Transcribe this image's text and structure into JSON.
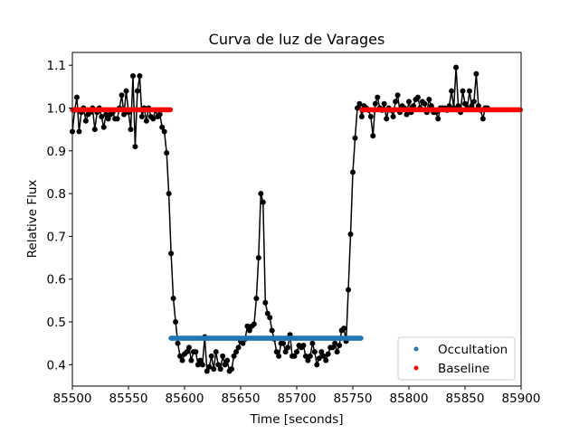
{
  "chart_data": {
    "type": "scatter",
    "title": "Curva de luz de Varages",
    "xlabel": "Time [seconds]",
    "ylabel": "Relative Flux",
    "xlim": [
      85500,
      85900
    ],
    "ylim": [
      0.35,
      1.13
    ],
    "xticks": [
      85500,
      85550,
      85600,
      85650,
      85700,
      85750,
      85800,
      85850,
      85900
    ],
    "yticks": [
      0.4,
      0.5,
      0.6,
      0.7,
      0.8,
      0.9,
      1.0,
      1.1
    ],
    "grid": false,
    "legend_position": "lower-right",
    "series": [
      {
        "name": "Occultation",
        "color": "#1f77b4",
        "marker": "point",
        "x_range": [
          85588,
          85758
        ],
        "y": 0.462
      },
      {
        "name": "Baseline",
        "color": "#ff0000",
        "marker": "point",
        "segments": [
          {
            "x_range": [
              85500,
              85588
            ],
            "y": 0.996
          },
          {
            "x_range": [
              85758,
              85900
            ],
            "y": 0.996
          }
        ]
      }
    ],
    "light_curve": {
      "color": "#000000",
      "points": [
        [
          85500,
          0.945
        ],
        [
          85502,
          0.995
        ],
        [
          85504,
          1.025
        ],
        [
          85506,
          0.945
        ],
        [
          85508,
          0.99
        ],
        [
          85510,
          1.0
        ],
        [
          85512,
          0.97
        ],
        [
          85514,
          0.985
        ],
        [
          85516,
          0.99
        ],
        [
          85518,
          1.0
        ],
        [
          85520,
          0.95
        ],
        [
          85522,
          0.99
        ],
        [
          85524,
          1.0
        ],
        [
          85526,
          0.98
        ],
        [
          85528,
          0.955
        ],
        [
          85530,
          0.985
        ],
        [
          85532,
          0.975
        ],
        [
          85534,
          0.985
        ],
        [
          85536,
          0.99
        ],
        [
          85538,
          0.975
        ],
        [
          85540,
          0.975
        ],
        [
          85542,
          1.0
        ],
        [
          85544,
          1.03
        ],
        [
          85546,
          0.985
        ],
        [
          85548,
          1.04
        ],
        [
          85550,
          0.99
        ],
        [
          85552,
          0.95
        ],
        [
          85554,
          1.075
        ],
        [
          85556,
          0.91
        ],
        [
          85558,
          1.04
        ],
        [
          85560,
          1.075
        ],
        [
          85562,
          0.98
        ],
        [
          85564,
          1.0
        ],
        [
          85566,
          0.97
        ],
        [
          85568,
          1.0
        ],
        [
          85570,
          0.98
        ],
        [
          85572,
          0.975
        ],
        [
          85574,
          0.995
        ],
        [
          85576,
          0.98
        ],
        [
          85578,
          0.985
        ],
        [
          85580,
          0.955
        ],
        [
          85582,
          0.945
        ],
        [
          85584,
          0.895
        ],
        [
          85586,
          0.8
        ],
        [
          85588,
          0.66
        ],
        [
          85590,
          0.555
        ],
        [
          85592,
          0.5
        ],
        [
          85594,
          0.45
        ],
        [
          85596,
          0.42
        ],
        [
          85598,
          0.41
        ],
        [
          85600,
          0.425
        ],
        [
          85602,
          0.43
        ],
        [
          85604,
          0.44
        ],
        [
          85606,
          0.41
        ],
        [
          85608,
          0.43
        ],
        [
          85610,
          0.43
        ],
        [
          85612,
          0.4
        ],
        [
          85614,
          0.41
        ],
        [
          85616,
          0.4
        ],
        [
          85618,
          0.465
        ],
        [
          85620,
          0.385
        ],
        [
          85622,
          0.395
        ],
        [
          85624,
          0.42
        ],
        [
          85626,
          0.39
        ],
        [
          85628,
          0.43
        ],
        [
          85630,
          0.4
        ],
        [
          85632,
          0.39
        ],
        [
          85634,
          0.42
        ],
        [
          85636,
          0.4
        ],
        [
          85638,
          0.41
        ],
        [
          85640,
          0.385
        ],
        [
          85642,
          0.39
        ],
        [
          85644,
          0.42
        ],
        [
          85646,
          0.43
        ],
        [
          85648,
          0.44
        ],
        [
          85650,
          0.455
        ],
        [
          85652,
          0.45
        ],
        [
          85654,
          0.46
        ],
        [
          85656,
          0.49
        ],
        [
          85658,
          0.48
        ],
        [
          85660,
          0.49
        ],
        [
          85662,
          0.495
        ],
        [
          85664,
          0.555
        ],
        [
          85666,
          0.65
        ],
        [
          85668,
          0.8
        ],
        [
          85670,
          0.78
        ],
        [
          85672,
          0.545
        ],
        [
          85674,
          0.52
        ],
        [
          85676,
          0.51
        ],
        [
          85678,
          0.48
        ],
        [
          85680,
          0.46
        ],
        [
          85682,
          0.43
        ],
        [
          85684,
          0.42
        ],
        [
          85686,
          0.45
        ],
        [
          85688,
          0.45
        ],
        [
          85690,
          0.43
        ],
        [
          85692,
          0.44
        ],
        [
          85694,
          0.47
        ],
        [
          85696,
          0.42
        ],
        [
          85698,
          0.42
        ],
        [
          85700,
          0.43
        ],
        [
          85702,
          0.445
        ],
        [
          85704,
          0.44
        ],
        [
          85706,
          0.445
        ],
        [
          85708,
          0.42
        ],
        [
          85710,
          0.41
        ],
        [
          85712,
          0.42
        ],
        [
          85714,
          0.45
        ],
        [
          85716,
          0.43
        ],
        [
          85718,
          0.4
        ],
        [
          85720,
          0.415
        ],
        [
          85722,
          0.43
        ],
        [
          85724,
          0.42
        ],
        [
          85726,
          0.41
        ],
        [
          85728,
          0.425
        ],
        [
          85730,
          0.44
        ],
        [
          85732,
          0.44
        ],
        [
          85734,
          0.45
        ],
        [
          85736,
          0.43
        ],
        [
          85738,
          0.445
        ],
        [
          85740,
          0.48
        ],
        [
          85742,
          0.485
        ],
        [
          85744,
          0.455
        ],
        [
          85746,
          0.575
        ],
        [
          85748,
          0.705
        ],
        [
          85750,
          0.85
        ],
        [
          85752,
          0.93
        ],
        [
          85754,
          1.0
        ],
        [
          85756,
          1.01
        ],
        [
          85758,
          0.98
        ],
        [
          85760,
          1.005
        ],
        [
          85762,
          1.0
        ],
        [
          85764,
          0.995
        ],
        [
          85766,
          0.98
        ],
        [
          85768,
          0.935
        ],
        [
          85770,
          1.01
        ],
        [
          85772,
          1.025
        ],
        [
          85774,
          1.0
        ],
        [
          85776,
          0.995
        ],
        [
          85778,
          1.01
        ],
        [
          85780,
          0.975
        ],
        [
          85782,
          1.0
        ],
        [
          85784,
          0.995
        ],
        [
          85786,
          0.98
        ],
        [
          85788,
          1.015
        ],
        [
          85790,
          1.03
        ],
        [
          85792,
          0.99
        ],
        [
          85794,
          1.005
        ],
        [
          85796,
          1.0
        ],
        [
          85798,
          0.985
        ],
        [
          85800,
          1.015
        ],
        [
          85802,
          0.99
        ],
        [
          85804,
          1.005
        ],
        [
          85806,
          1.02
        ],
        [
          85808,
          1.025
        ],
        [
          85810,
          1.0
        ],
        [
          85812,
          1.015
        ],
        [
          85814,
          1.01
        ],
        [
          85816,
          0.99
        ],
        [
          85818,
          1.02
        ],
        [
          85820,
          1.005
        ],
        [
          85822,
          0.99
        ],
        [
          85824,
          0.99
        ],
        [
          85826,
          0.975
        ],
        [
          85828,
          1.0
        ],
        [
          85830,
          1.0
        ],
        [
          85832,
          1.0
        ],
        [
          85834,
          0.995
        ],
        [
          85836,
          1.005
        ],
        [
          85838,
          1.04
        ],
        [
          85840,
          1.0
        ],
        [
          85842,
          1.095
        ],
        [
          85844,
          1.005
        ],
        [
          85846,
          0.99
        ],
        [
          85848,
          1.04
        ],
        [
          85850,
          1.01
        ],
        [
          85852,
          1.0
        ],
        [
          85854,
          1.04
        ],
        [
          85856,
          1.005
        ],
        [
          85858,
          1.015
        ],
        [
          85860,
          1.08
        ],
        [
          85862,
          1.005
        ],
        [
          85864,
          0.995
        ],
        [
          85866,
          0.975
        ],
        [
          85868,
          1.0
        ],
        [
          85870,
          1.0
        ]
      ]
    }
  }
}
